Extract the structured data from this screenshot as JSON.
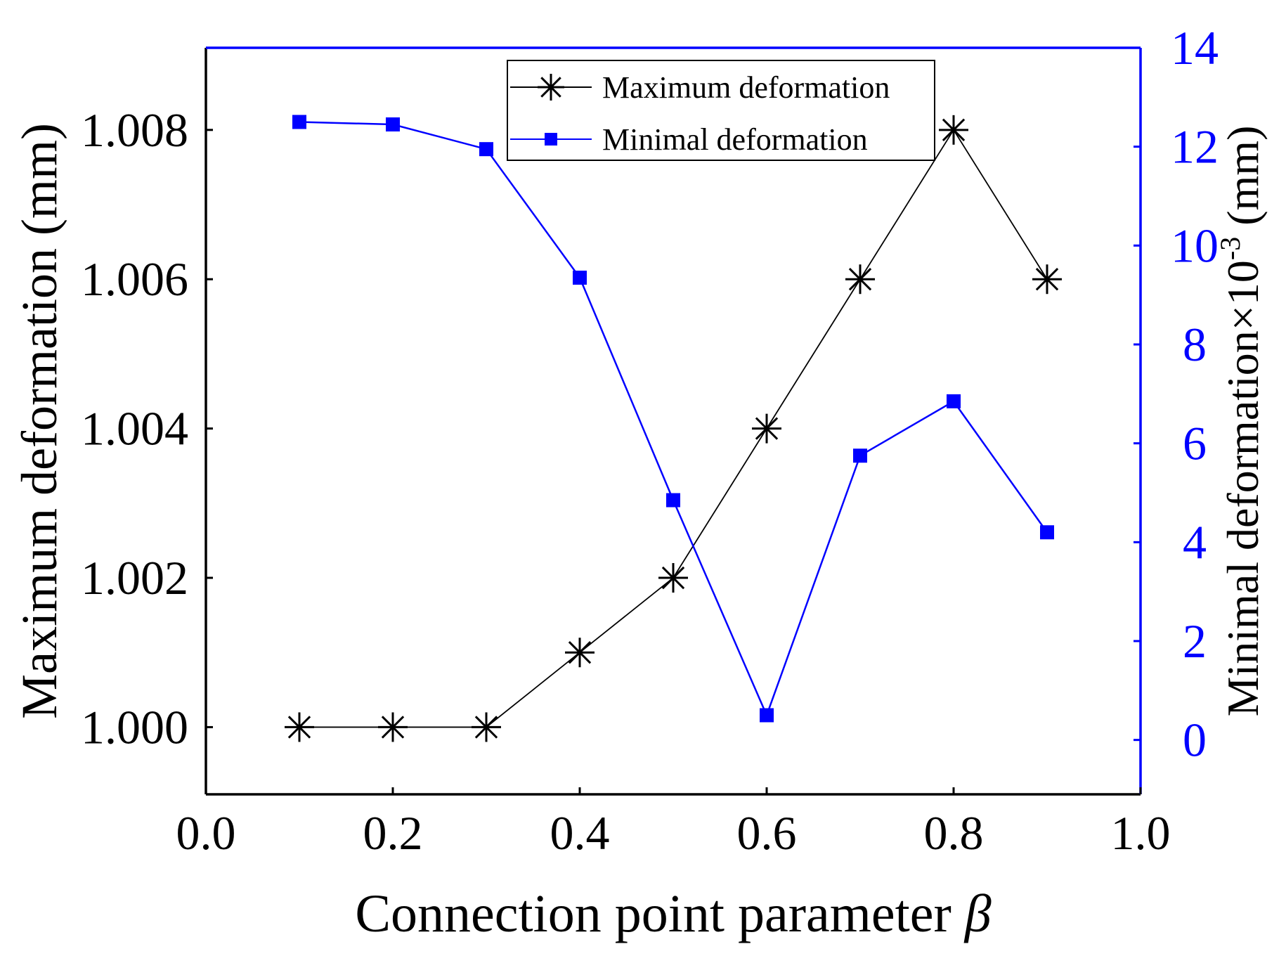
{
  "chart_data": {
    "type": "line",
    "title": "",
    "xlabel": "Connection point parameter",
    "xlabel_symbol": "β",
    "ylabel_left": "Maximum deformation (mm)",
    "ylabel_right_main": "Minimal deformation×10",
    "ylabel_right_exp": "-3",
    "ylabel_right_unit": " (mm)",
    "x": [
      0.1,
      0.2,
      0.3,
      0.4,
      0.5,
      0.6,
      0.7,
      0.8,
      0.9
    ],
    "xlim": [
      0.0,
      1.0
    ],
    "ylim_left": [
      0.9991,
      1.0091
    ],
    "ylim_right": [
      -1.1,
      14.0
    ],
    "x_ticks": [
      0.0,
      0.2,
      0.4,
      0.6,
      0.8,
      1.0
    ],
    "x_tick_labels": [
      "0.0",
      "0.2",
      "0.4",
      "0.6",
      "0.8",
      "1.0"
    ],
    "y_left_ticks": [
      1.0,
      1.002,
      1.004,
      1.006,
      1.008
    ],
    "y_left_tick_labels": [
      "1.000",
      "1.002",
      "1.004",
      "1.006",
      "1.008"
    ],
    "y_right_ticks": [
      0,
      2,
      4,
      6,
      8,
      10,
      12,
      14
    ],
    "y_right_tick_labels": [
      "0",
      "2",
      "4",
      "6",
      "8",
      "10",
      "12",
      "14"
    ],
    "series": [
      {
        "name": "Maximum deformation",
        "axis": "left",
        "marker": "asterisk",
        "color": "#000000",
        "values": [
          1.0,
          1.0,
          1.0,
          1.001,
          1.002,
          1.004,
          1.006,
          1.008,
          1.006
        ]
      },
      {
        "name": "Minimal deformation",
        "axis": "right",
        "marker": "square",
        "color": "#0000ff",
        "values": [
          12.5,
          12.45,
          11.95,
          9.35,
          4.85,
          0.5,
          5.75,
          6.85,
          4.2
        ]
      }
    ],
    "legend_position": "top-center",
    "grid": false,
    "colors": {
      "left_axis": "#000000",
      "right_axis": "#0000ff",
      "background": "#ffffff"
    }
  }
}
